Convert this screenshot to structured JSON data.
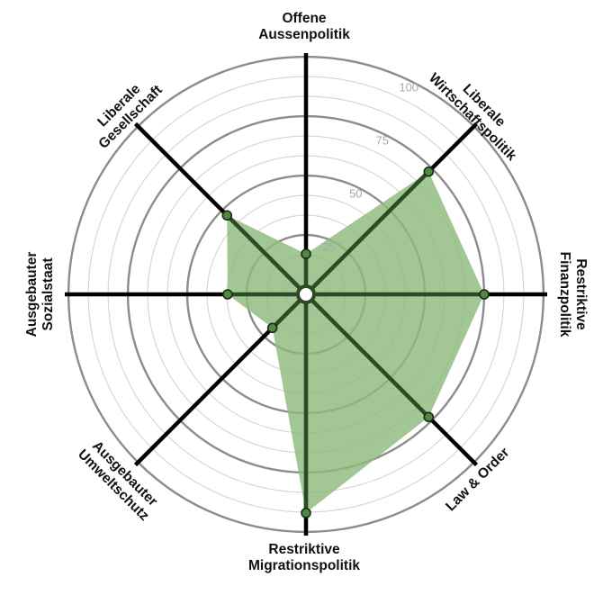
{
  "chart_data": {
    "type": "radar",
    "title": "",
    "axes": [
      {
        "lines": [
          "Offene",
          "Aussenpolitik"
        ]
      },
      {
        "lines": [
          "Liberale",
          "Wirtschaftspolitik"
        ]
      },
      {
        "lines": [
          "Restriktive",
          "Finanzpolitik"
        ]
      },
      {
        "lines": [
          "Law & Order"
        ]
      },
      {
        "lines": [
          "Restriktive",
          "Migrationspolitik"
        ]
      },
      {
        "lines": [
          "Ausgebauter",
          "Umweltschutz"
        ]
      },
      {
        "lines": [
          "Ausgebauter",
          "Sozialstaat"
        ]
      },
      {
        "lines": [
          "Liberale",
          "Gesellschaft"
        ]
      }
    ],
    "values": [
      17,
      73,
      75,
      73,
      92,
      20,
      33,
      47
    ],
    "rlim": [
      0,
      100
    ],
    "ring_step": 8.33,
    "major_ticks": [
      25,
      50,
      75,
      100
    ],
    "tick_labels": [
      "25",
      "50",
      "75",
      "100"
    ],
    "colors": {
      "fill": "#8dbb7e",
      "spoke": "#000000",
      "spoke_inside": "#2b4a25",
      "point": "#4e8a3f",
      "ring_major": "#8c8c8c",
      "ring_minor": "#d4d4d4",
      "tick_text": "#a9a9a9"
    },
    "grid": true,
    "legend": "none"
  }
}
